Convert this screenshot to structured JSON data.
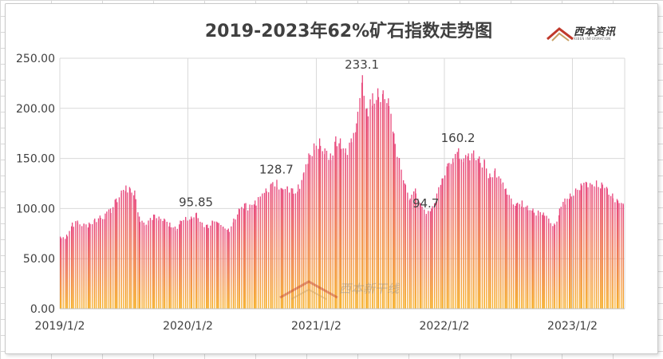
{
  "chart_data": {
    "type": "bar",
    "title": "2019-2023年62%矿石指数走势图",
    "xlabel": "",
    "ylabel": "",
    "ylim": [
      0,
      250
    ],
    "y_ticks": [
      "0.00",
      "50.00",
      "100.00",
      "150.00",
      "200.00",
      "250.00"
    ],
    "x_tick_labels": [
      "2019/1/2",
      "2020/1/2",
      "2021/1/2",
      "2022/1/2",
      "2023/1/2"
    ],
    "x_range": [
      "2019/1/2",
      "2023/5/31"
    ],
    "grid": {
      "horizontal": true,
      "vertical": true
    },
    "legend": "none",
    "bar_gradient": {
      "top": "#e8467f",
      "bottom": "#f7b22e"
    },
    "series": [
      {
        "values": [
          [
            "2019/1/2",
            72
          ],
          [
            "2019/1/20",
            74
          ],
          [
            "2019/2/5",
            86
          ],
          [
            "2019/2/20",
            88
          ],
          [
            "2019/3/10",
            85
          ],
          [
            "2019/3/25",
            86
          ],
          [
            "2019/4/10",
            90
          ],
          [
            "2019/4/25",
            93
          ],
          [
            "2019/5/10",
            95
          ],
          [
            "2019/5/25",
            100
          ],
          [
            "2019/6/10",
            110
          ],
          [
            "2019/6/25",
            118
          ],
          [
            "2019/7/8",
            123
          ],
          [
            "2019/7/20",
            120
          ],
          [
            "2019/8/2",
            118
          ],
          [
            "2019/8/15",
            92
          ],
          [
            "2019/8/28",
            86
          ],
          [
            "2019/9/10",
            88
          ],
          [
            "2019/9/25",
            94
          ],
          [
            "2019/10/10",
            92
          ],
          [
            "2019/10/25",
            90
          ],
          [
            "2019/11/10",
            86
          ],
          [
            "2019/11/25",
            82
          ],
          [
            "2019/12/10",
            88
          ],
          [
            "2019/12/25",
            91
          ],
          [
            "2020/1/10",
            92
          ],
          [
            "2020/1/25",
            95.85
          ],
          [
            "2020/2/10",
            86
          ],
          [
            "2020/2/25",
            84
          ],
          [
            "2020/3/10",
            88
          ],
          [
            "2020/3/25",
            86
          ],
          [
            "2020/4/10",
            82
          ],
          [
            "2020/4/25",
            80
          ],
          [
            "2020/5/10",
            90
          ],
          [
            "2020/5/25",
            100
          ],
          [
            "2020/6/10",
            105
          ],
          [
            "2020/6/25",
            104
          ],
          [
            "2020/7/10",
            108
          ],
          [
            "2020/7/25",
            112
          ],
          [
            "2020/8/10",
            120
          ],
          [
            "2020/8/25",
            125
          ],
          [
            "2020/9/10",
            128.7
          ],
          [
            "2020/9/25",
            120
          ],
          [
            "2020/10/10",
            122
          ],
          [
            "2020/10/25",
            120
          ],
          [
            "2020/11/10",
            124
          ],
          [
            "2020/11/25",
            135
          ],
          [
            "2020/12/10",
            155
          ],
          [
            "2020/12/25",
            165
          ],
          [
            "2021/1/10",
            170
          ],
          [
            "2021/1/25",
            160
          ],
          [
            "2021/2/10",
            155
          ],
          [
            "2021/2/25",
            172
          ],
          [
            "2021/3/10",
            170
          ],
          [
            "2021/3/25",
            160
          ],
          [
            "2021/4/10",
            170
          ],
          [
            "2021/4/25",
            185
          ],
          [
            "2021/5/12",
            233.1
          ],
          [
            "2021/5/25",
            200
          ],
          [
            "2021/6/10",
            215
          ],
          [
            "2021/6/25",
            220
          ],
          [
            "2021/7/10",
            218
          ],
          [
            "2021/7/25",
            210
          ],
          [
            "2021/8/10",
            175
          ],
          [
            "2021/8/25",
            150
          ],
          [
            "2021/9/10",
            125
          ],
          [
            "2021/9/25",
            110
          ],
          [
            "2021/10/10",
            120
          ],
          [
            "2021/10/25",
            105
          ],
          [
            "2021/11/10",
            94.7
          ],
          [
            "2021/11/25",
            100
          ],
          [
            "2021/12/10",
            115
          ],
          [
            "2021/12/25",
            130
          ],
          [
            "2022/1/10",
            145
          ],
          [
            "2022/1/25",
            150
          ],
          [
            "2022/2/10",
            160.2
          ],
          [
            "2022/2/25",
            150
          ],
          [
            "2022/3/10",
            155
          ],
          [
            "2022/3/25",
            158
          ],
          [
            "2022/4/10",
            152
          ],
          [
            "2022/4/25",
            148
          ],
          [
            "2022/5/10",
            135
          ],
          [
            "2022/5/25",
            140
          ],
          [
            "2022/6/10",
            130
          ],
          [
            "2022/6/25",
            120
          ],
          [
            "2022/7/10",
            110
          ],
          [
            "2022/7/25",
            105
          ],
          [
            "2022/8/10",
            108
          ],
          [
            "2022/8/25",
            103
          ],
          [
            "2022/9/10",
            100
          ],
          [
            "2022/9/25",
            98
          ],
          [
            "2022/10/10",
            96
          ],
          [
            "2022/10/25",
            90
          ],
          [
            "2022/11/10",
            85
          ],
          [
            "2022/11/25",
            100
          ],
          [
            "2022/12/10",
            110
          ],
          [
            "2022/12/25",
            115
          ],
          [
            "2023/1/10",
            120
          ],
          [
            "2023/1/25",
            125
          ],
          [
            "2023/2/10",
            126
          ],
          [
            "2023/2/25",
            124
          ],
          [
            "2023/3/10",
            128
          ],
          [
            "2023/3/25",
            126
          ],
          [
            "2023/4/10",
            120
          ],
          [
            "2023/4/25",
            115
          ],
          [
            "2023/5/10",
            108
          ],
          [
            "2023/5/25",
            105
          ]
        ]
      }
    ],
    "data_labels": [
      {
        "x": "2020/1/25",
        "text": "95.85"
      },
      {
        "x": "2020/9/10",
        "text": "128.7"
      },
      {
        "x": "2021/5/12",
        "text": "233.1"
      },
      {
        "x": "2021/11/10",
        "text": "94.7"
      },
      {
        "x": "2022/2/10",
        "text": "160.2"
      }
    ]
  },
  "branding": {
    "logo_text": "西本资讯",
    "logo_subtext": "XIBEN INFORMATION",
    "watermark_text": "西本新干线"
  }
}
